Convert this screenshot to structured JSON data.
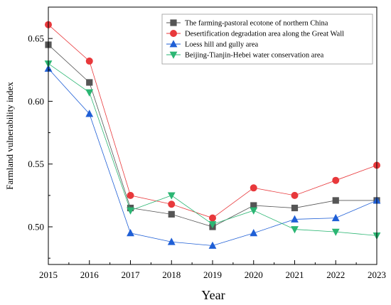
{
  "chart_data": {
    "type": "line",
    "title": "",
    "xlabel": "Year",
    "ylabel": "Farmland vulnerability index",
    "x": [
      2015,
      2016,
      2017,
      2018,
      2019,
      2020,
      2021,
      2022,
      2023
    ],
    "x_tick_labels": [
      "2015",
      "2016",
      "2017",
      "2018",
      "2019",
      "2020",
      "2021",
      "2022",
      "2023"
    ],
    "xlim": [
      2015,
      2023
    ],
    "ylim": [
      0.47,
      0.675
    ],
    "y_ticks": [
      0.5,
      0.55,
      0.6,
      0.65
    ],
    "y_tick_labels": [
      "0.50",
      "0.55",
      "0.60",
      "0.65"
    ],
    "grid": false,
    "legend_position": "top-right",
    "series": [
      {
        "name": "The farming-pastoral ecotone of northern China",
        "color": "#555555",
        "marker": "square",
        "values": [
          0.645,
          0.615,
          0.515,
          0.51,
          0.5,
          0.517,
          0.515,
          0.521,
          0.521
        ]
      },
      {
        "name": "Desertification degradation area along the Great Wall",
        "color": "#e8383b",
        "marker": "circle",
        "values": [
          0.661,
          0.632,
          0.525,
          0.518,
          0.507,
          0.531,
          0.525,
          0.537,
          0.549
        ]
      },
      {
        "name": "Loess hill and gully area",
        "color": "#1f5fd6",
        "marker": "triangle-up",
        "values": [
          0.626,
          0.59,
          0.495,
          0.488,
          0.485,
          0.495,
          0.506,
          0.507,
          0.521
        ]
      },
      {
        "name": "Beijing-Tianjin-Hebei water conservation area",
        "color": "#2bb673",
        "marker": "triangle-down",
        "values": [
          0.63,
          0.607,
          0.513,
          0.525,
          0.502,
          0.513,
          0.498,
          0.496,
          0.493
        ]
      }
    ]
  }
}
